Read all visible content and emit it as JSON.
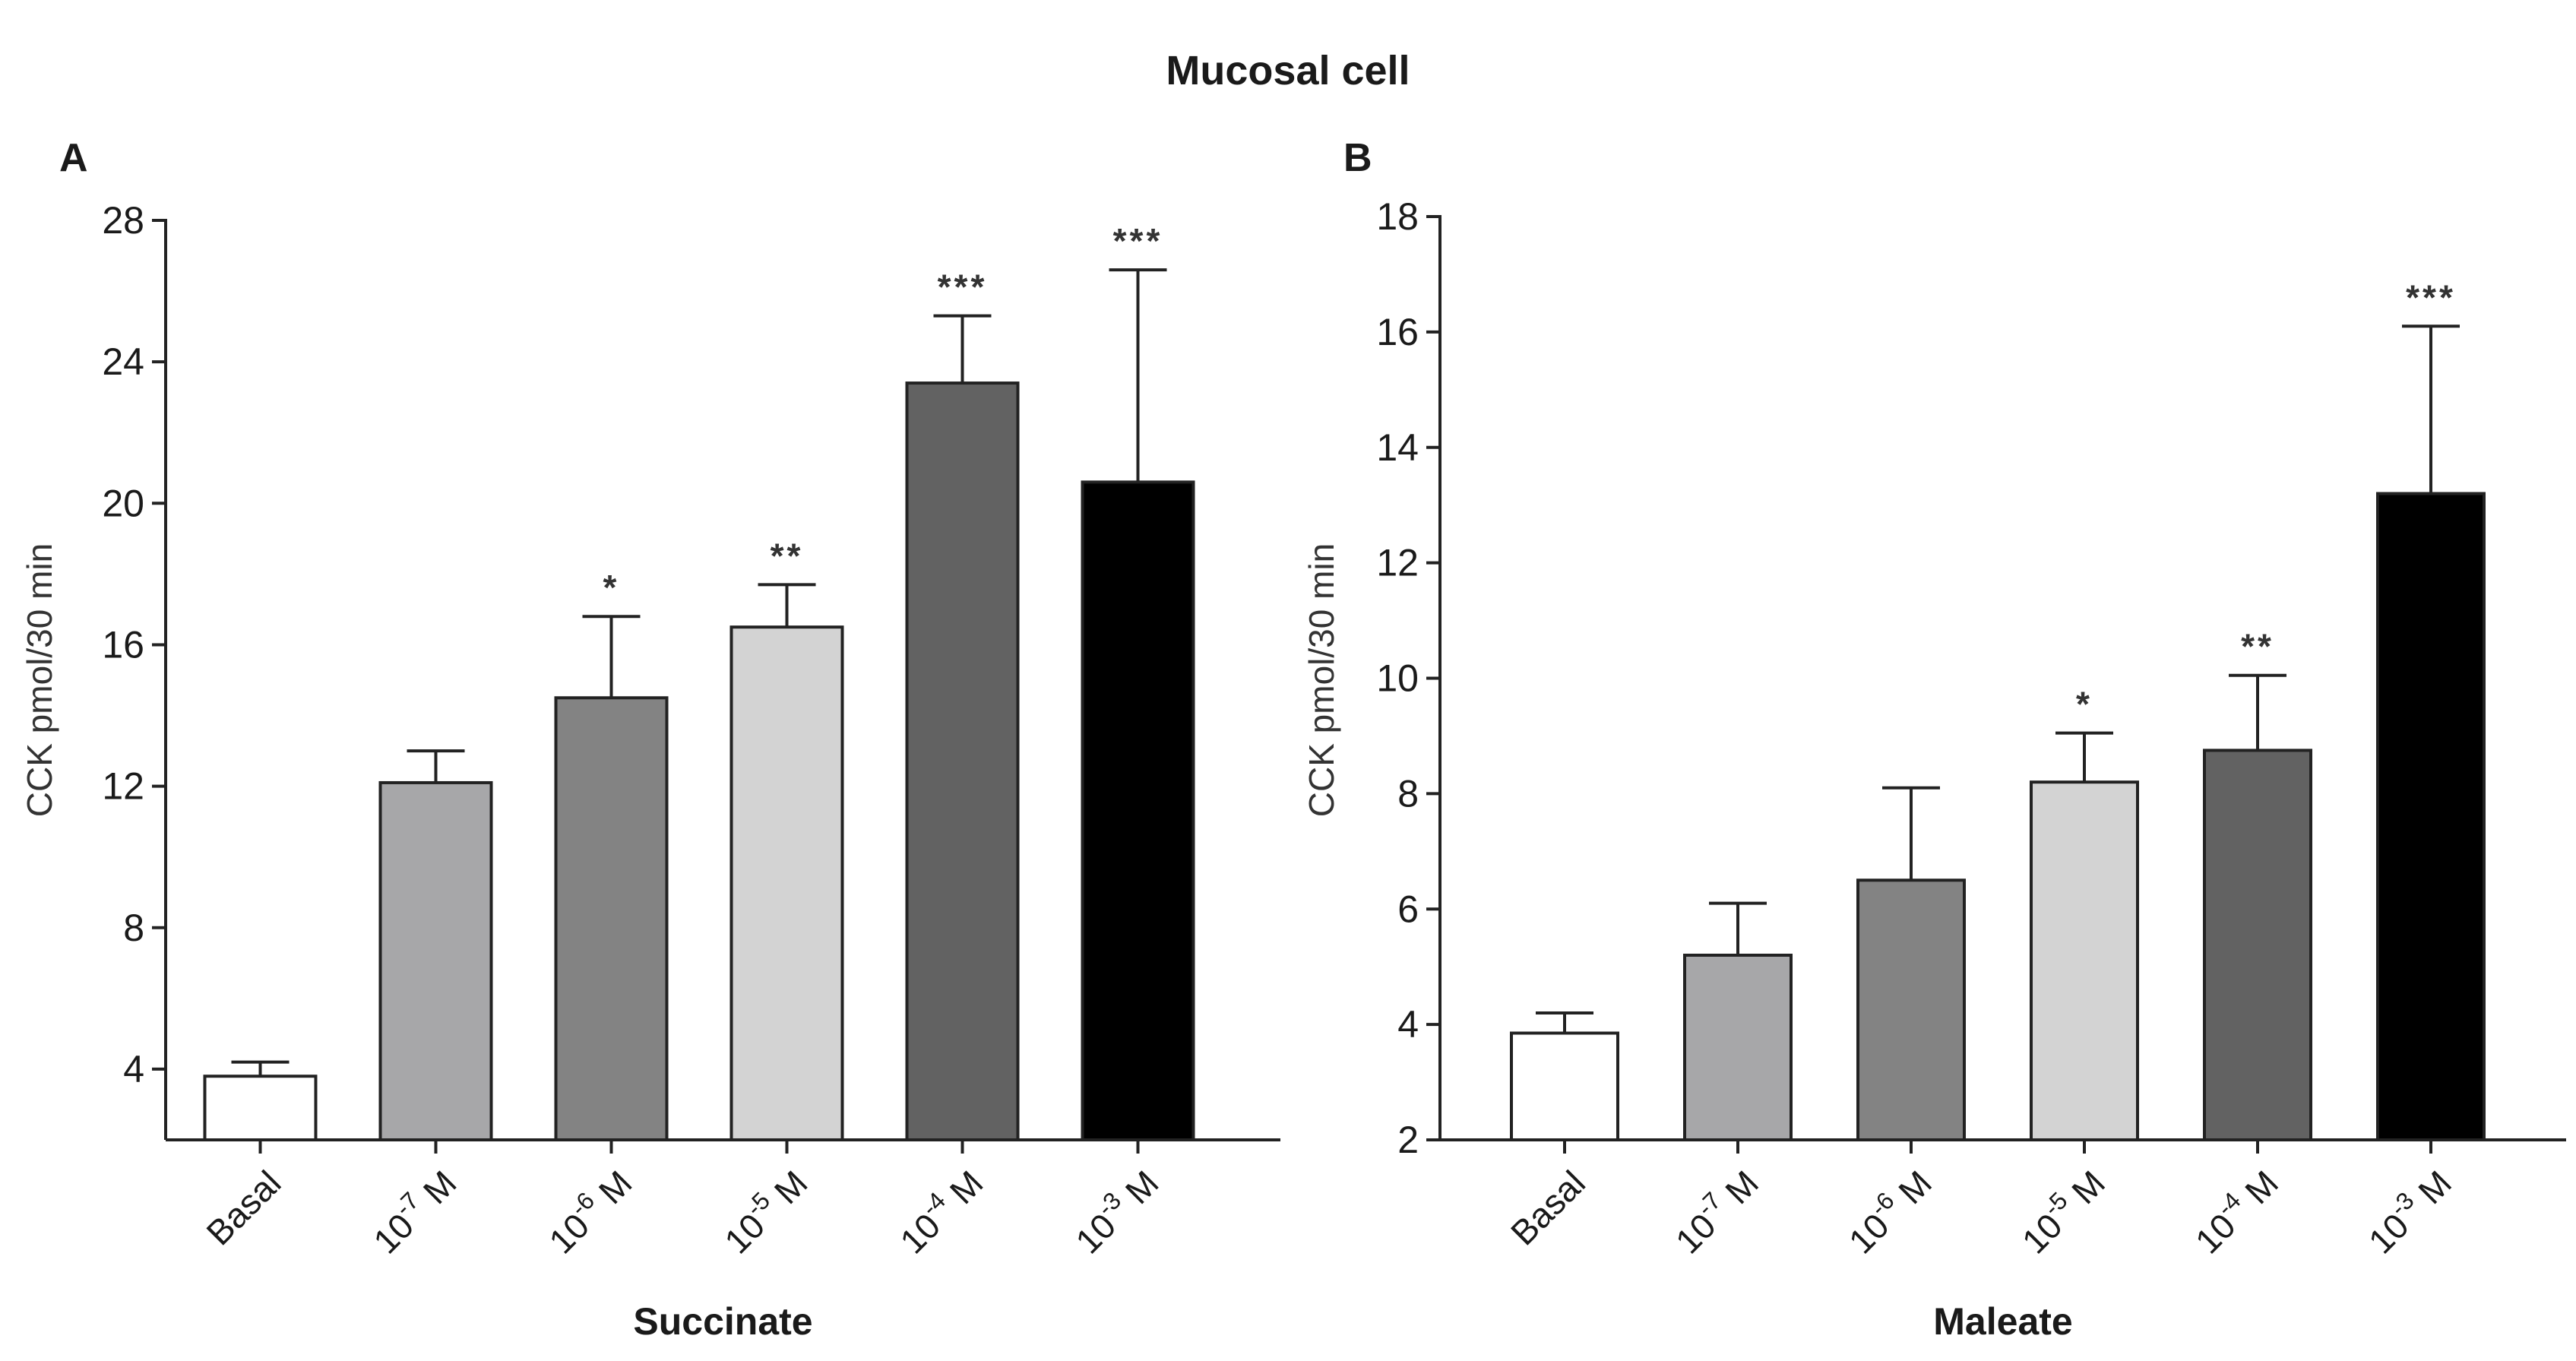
{
  "figure": {
    "title": "Mucosal cell"
  },
  "chart_data": [
    {
      "panel": "A",
      "type": "bar",
      "xlabel": "Succinate",
      "ylabel": "CCK pmol/30 min",
      "ylim": [
        2,
        28
      ],
      "yticks": [
        4,
        8,
        12,
        16,
        20,
        24,
        28
      ],
      "categories": [
        {
          "base": "Basal",
          "exp": ""
        },
        {
          "base": "10",
          "exp": "-7",
          "unit": " M"
        },
        {
          "base": "10",
          "exp": "-6",
          "unit": " M"
        },
        {
          "base": "10",
          "exp": "-5",
          "unit": " M"
        },
        {
          "base": "10",
          "exp": "-4",
          "unit": " M"
        },
        {
          "base": "10",
          "exp": "-3",
          "unit": " M"
        }
      ],
      "values": [
        3.8,
        12.1,
        14.5,
        16.5,
        23.4,
        20.6
      ],
      "errors": [
        0.4,
        0.9,
        2.3,
        1.2,
        1.9,
        6.0
      ],
      "significance": [
        "",
        "",
        "*",
        "**",
        "***",
        "***"
      ],
      "colors": [
        "#ffffff",
        "#a7a7a9",
        "#838383",
        "#d3d3d3",
        "#626262",
        "#000000"
      ]
    },
    {
      "panel": "B",
      "type": "bar",
      "xlabel": "Maleate",
      "ylabel": "CCK pmol/30 min",
      "ylim": [
        2,
        18
      ],
      "yticks": [
        2,
        4,
        6,
        8,
        10,
        12,
        14,
        16,
        18
      ],
      "categories": [
        {
          "base": "Basal",
          "exp": ""
        },
        {
          "base": "10",
          "exp": "-7",
          "unit": " M"
        },
        {
          "base": "10",
          "exp": "-6",
          "unit": " M"
        },
        {
          "base": "10",
          "exp": "-5",
          "unit": " M"
        },
        {
          "base": "10",
          "exp": "-4",
          "unit": " M"
        },
        {
          "base": "10",
          "exp": "-3",
          "unit": " M"
        }
      ],
      "values": [
        3.85,
        5.2,
        6.5,
        8.2,
        8.75,
        13.2
      ],
      "errors": [
        0.35,
        0.9,
        1.6,
        0.85,
        1.3,
        2.9
      ],
      "significance": [
        "",
        "",
        "",
        "*",
        "**",
        "***"
      ],
      "colors": [
        "#ffffff",
        "#a7a7a9",
        "#838383",
        "#d3d3d3",
        "#626262",
        "#000000"
      ]
    }
  ]
}
